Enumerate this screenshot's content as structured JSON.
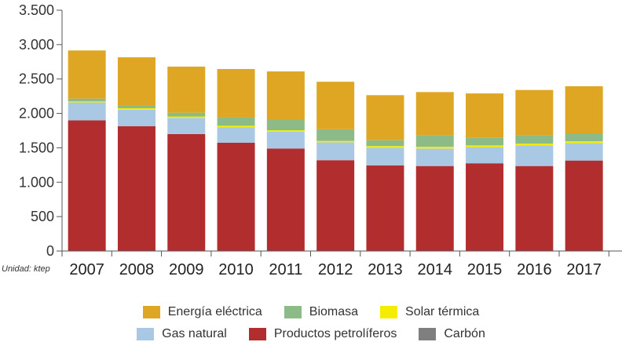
{
  "chart_data": {
    "type": "stacked-bar",
    "unit_label": "Unidad: ktep",
    "categories": [
      "2007",
      "2008",
      "2009",
      "2010",
      "2011",
      "2012",
      "2013",
      "2014",
      "2015",
      "2016",
      "2017"
    ],
    "y_tick_labels": [
      "0",
      "500",
      "1.000",
      "1.500",
      "2.000",
      "2.500",
      "3.000",
      "3.500"
    ],
    "y_ticks": [
      0,
      500,
      1000,
      1500,
      2000,
      2500,
      3000,
      3500
    ],
    "ylim": [
      0,
      3500
    ],
    "series": [
      {
        "name": "Productos petrolíferos",
        "color": "#b22e2e",
        "values": [
          1900,
          1815,
          1700,
          1575,
          1490,
          1320,
          1245,
          1235,
          1275,
          1235,
          1315
        ]
      },
      {
        "name": "Carbón",
        "color": "#7f7f7f",
        "values": [
          0,
          0,
          0,
          0,
          0,
          0,
          0,
          0,
          0,
          0,
          0
        ]
      },
      {
        "name": "Gas natural",
        "color": "#a9c8e3",
        "values": [
          260,
          240,
          235,
          225,
          245,
          260,
          255,
          255,
          235,
          300,
          255
        ]
      },
      {
        "name": "Solar térmica",
        "color": "#f5ed00",
        "values": [
          15,
          20,
          20,
          20,
          20,
          20,
          25,
          25,
          25,
          25,
          25
        ]
      },
      {
        "name": "Biomasa",
        "color": "#8cbb87",
        "values": [
          40,
          40,
          55,
          125,
          155,
          170,
          85,
          170,
          110,
          125,
          115
        ]
      },
      {
        "name": "Energía eléctrica",
        "color": "#dea622",
        "values": [
          700,
          700,
          670,
          700,
          700,
          690,
          655,
          625,
          645,
          655,
          685
        ]
      }
    ],
    "legend": [
      {
        "name": "Energía eléctrica",
        "color": "#dea622"
      },
      {
        "name": "Biomasa",
        "color": "#8cbb87"
      },
      {
        "name": "Solar térmica",
        "color": "#f5ed00"
      },
      {
        "name": "Gas natural",
        "color": "#a9c8e3"
      },
      {
        "name": "Productos petrolíferos",
        "color": "#b22e2e"
      },
      {
        "name": "Carbón",
        "color": "#7f7f7f"
      }
    ]
  }
}
